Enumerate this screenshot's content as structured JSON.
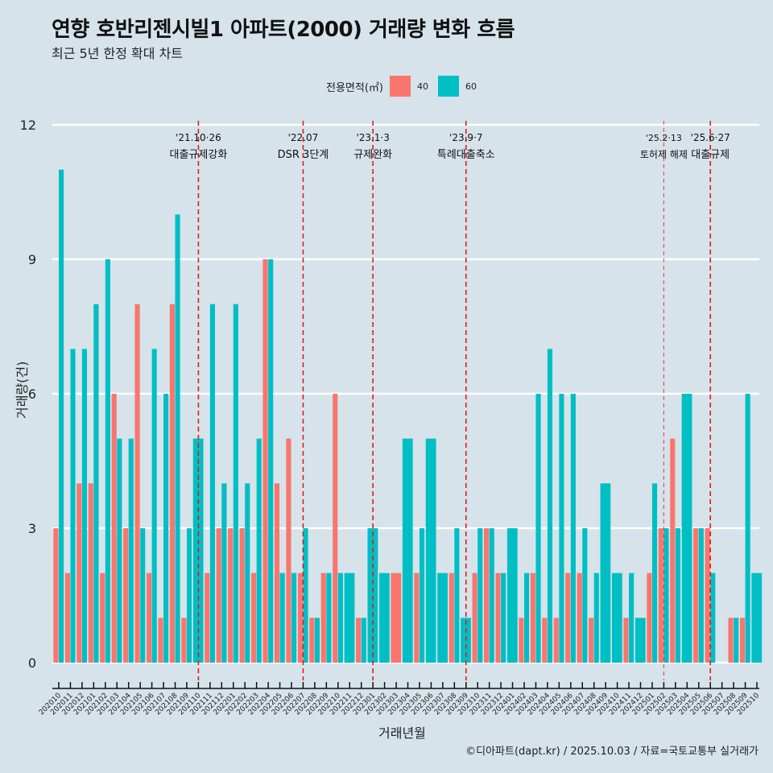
{
  "header": {
    "title": "연향 호반리젠시빌1 아파트(2000) 거래량 변화 흐름",
    "subtitle": "최근 5년 한정 확대 차트"
  },
  "legend": {
    "title": "전용면적(㎡)",
    "items": [
      {
        "label": "40",
        "color": "#f8766d"
      },
      {
        "label": "60",
        "color": "#00bfc4"
      }
    ]
  },
  "caption": "©디아파트(dapt.kr) / 2025.10.03 / 자료=국토교통부 실거래가",
  "chart_data": {
    "type": "bar",
    "title": "연향 호반리젠시빌1 아파트(2000) 거래량 변화 흐름",
    "subtitle": "최근 5년 한정 확대 차트",
    "xlabel": "거래년월",
    "ylabel": "거래량(건)",
    "ylim": [
      0,
      12
    ],
    "yticks": [
      0,
      3,
      6,
      9,
      12
    ],
    "grid": true,
    "legend_position": "top",
    "legend_title": "전용면적(㎡)",
    "categories": [
      "202010",
      "202011",
      "202012",
      "202101",
      "202102",
      "202103",
      "202104",
      "202105",
      "202106",
      "202107",
      "202108",
      "202109",
      "202110",
      "202111",
      "202112",
      "202201",
      "202202",
      "202203",
      "202204",
      "202205",
      "202206",
      "202207",
      "202208",
      "202209",
      "202210",
      "202211",
      "202212",
      "202301",
      "202302",
      "202303",
      "202304",
      "202305",
      "202306",
      "202307",
      "202308",
      "202309",
      "202310",
      "202311",
      "202312",
      "202401",
      "202402",
      "202403",
      "202404",
      "202405",
      "202406",
      "202407",
      "202408",
      "202409",
      "202410",
      "202411",
      "202412",
      "202501",
      "202502",
      "202503",
      "202504",
      "202505",
      "202506",
      "202507",
      "202508",
      "202509",
      "202510"
    ],
    "series": [
      {
        "name": "40",
        "color": "#f8766d",
        "values": [
          3,
          2,
          4,
          4,
          2,
          6,
          3,
          8,
          2,
          1,
          8,
          1,
          null,
          2,
          3,
          3,
          3,
          2,
          9,
          4,
          5,
          2,
          1,
          2,
          6,
          null,
          1,
          null,
          null,
          2,
          null,
          2,
          null,
          null,
          2,
          null,
          2,
          3,
          2,
          null,
          1,
          2,
          1,
          1,
          2,
          2,
          1,
          null,
          null,
          1,
          null,
          2,
          3,
          5,
          null,
          3,
          3,
          null,
          1,
          1,
          null
        ]
      },
      {
        "name": "60",
        "color": "#00bfc4",
        "values": [
          11,
          7,
          7,
          8,
          9,
          5,
          5,
          3,
          7,
          6,
          10,
          3,
          5,
          8,
          4,
          8,
          4,
          5,
          9,
          2,
          2,
          3,
          1,
          2,
          2,
          2,
          1,
          3,
          2,
          null,
          5,
          3,
          5,
          2,
          3,
          1,
          3,
          3,
          2,
          3,
          2,
          6,
          7,
          6,
          6,
          3,
          2,
          4,
          2,
          2,
          1,
          4,
          3,
          3,
          6,
          3,
          2,
          null,
          1,
          6,
          2
        ]
      }
    ],
    "annotations": [
      {
        "category": "202110",
        "date": "'21.10·26",
        "label": "대출규제강화",
        "style": "major"
      },
      {
        "category": "202207",
        "date": "'22.07",
        "label": "DSR 3단계",
        "style": "major"
      },
      {
        "category": "202301",
        "date": "'23.1·3",
        "label": "규제완화",
        "style": "major"
      },
      {
        "category": "202309",
        "date": "'23.9·7",
        "label": "특례대출축소",
        "style": "major"
      },
      {
        "category": "202502",
        "date": "'25.2·13",
        "label": "토허제 해제",
        "style": "minor"
      },
      {
        "category": "202506",
        "date": "'25.6·27",
        "label": "대출규제",
        "style": "major"
      }
    ]
  }
}
